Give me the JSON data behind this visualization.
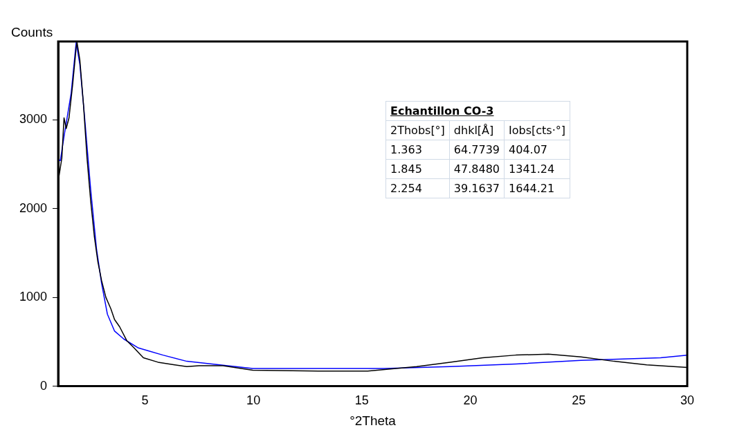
{
  "chart_data": {
    "type": "line",
    "xlabel": "°2Theta",
    "ylabel": "Counts",
    "xlim": [
      1,
      30
    ],
    "xticks": [
      5,
      10,
      15,
      20,
      25,
      30
    ],
    "ylim": [
      0,
      3880
    ],
    "yticks": [
      0,
      1000,
      2000,
      3000
    ],
    "grid": false,
    "legend": false,
    "series": [
      {
        "color": "#000000",
        "x": [
          1.0,
          1.03,
          1.17,
          1.27,
          1.37,
          1.5,
          1.67,
          1.83,
          1.87,
          2.0,
          2.17,
          2.33,
          2.5,
          2.67,
          2.83,
          3.0,
          3.2,
          3.43,
          3.6,
          3.83,
          4.17,
          4.5,
          4.93,
          5.6,
          6.37,
          6.93,
          7.5,
          8.6,
          9.97,
          13,
          15.27,
          17.53,
          19.07,
          20.57,
          22.1,
          23.6,
          25.1,
          26.63,
          28.13,
          30
        ],
        "values": [
          2430,
          2350,
          2570,
          3020,
          2900,
          3020,
          3400,
          3810,
          3870,
          3670,
          3160,
          2570,
          2080,
          1680,
          1400,
          1190,
          1000,
          870,
          750,
          670,
          510,
          430,
          320,
          270,
          240,
          220,
          230,
          230,
          180,
          170,
          170,
          220,
          270,
          320,
          350,
          360,
          330,
          280,
          240,
          210
        ]
      },
      {
        "color": "#0000ff",
        "x": [
          1.0,
          1.1,
          1.27,
          1.6,
          1.83,
          2.0,
          2.2,
          2.5,
          2.77,
          3.0,
          3.27,
          3.6,
          4.03,
          4.7,
          5.83,
          6.93,
          9.97,
          16.03,
          19.07,
          22.1,
          25.1,
          28.77,
          30
        ],
        "values": [
          2550,
          2540,
          2810,
          3300,
          3870,
          3620,
          3080,
          2210,
          1540,
          1160,
          810,
          620,
          530,
          430,
          350,
          280,
          200,
          200,
          220,
          250,
          290,
          320,
          350
        ]
      }
    ],
    "annotations": [
      "Echantillon CO-3",
      "2Thobs[°]",
      "dhkl[Å]",
      "Iobs[cts·°]",
      "1.363",
      "64.7739",
      "404.07",
      "1.845",
      "47.8480",
      "1341.24",
      "2.254",
      "39.1637",
      "1644.21"
    ]
  }
}
